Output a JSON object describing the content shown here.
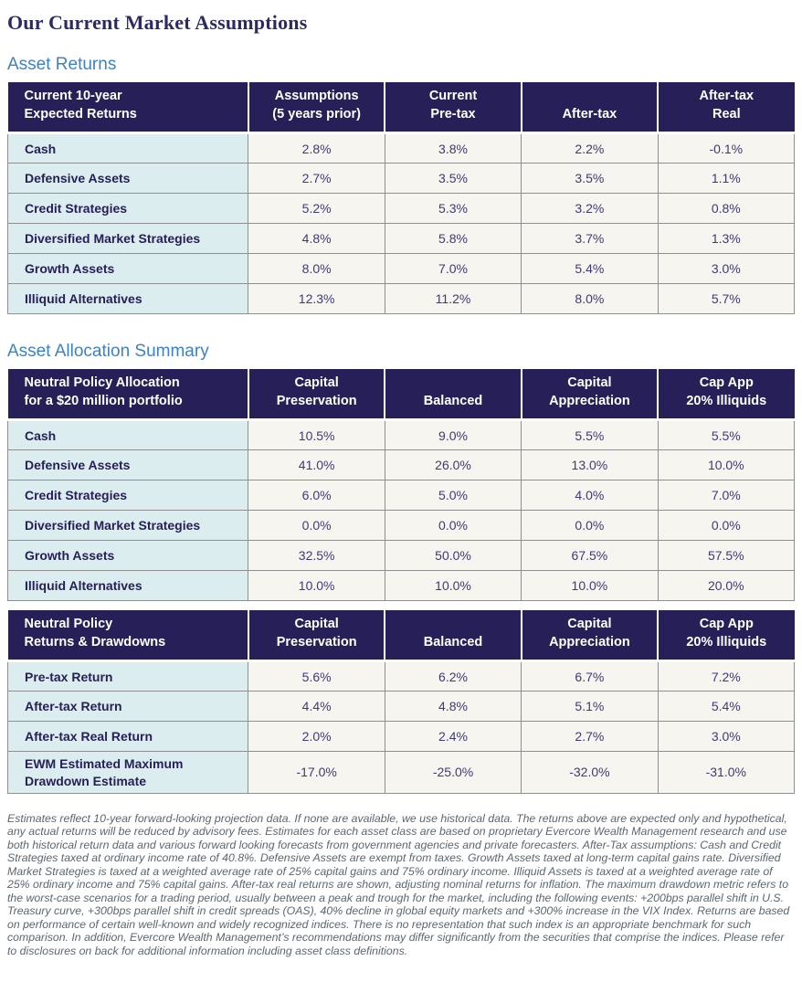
{
  "title": "Our Current Market Assumptions",
  "colors": {
    "header_bg": "#272058",
    "header_text": "#ffffff",
    "label_column_bg": "#dcedef",
    "data_cell_bg": "#f7f5ef",
    "section_heading": "#3d82c4",
    "title_text": "#2d2963",
    "data_text": "#3f3a75",
    "grid_border": "#8f8f8f",
    "footnote_text": "#5b6670"
  },
  "sections": {
    "asset_returns": {
      "heading": "Asset Returns",
      "table": {
        "columns": [
          "Current 10-year\nExpected Returns",
          "Assumptions\n(5 years prior)",
          "Current\nPre-tax",
          "After-tax",
          "After-tax\nReal"
        ],
        "rows": [
          {
            "label": "Cash",
            "values": [
              "2.8%",
              "3.8%",
              "2.2%",
              "-0.1%"
            ]
          },
          {
            "label": "Defensive Assets",
            "values": [
              "2.7%",
              "3.5%",
              "3.5%",
              "1.1%"
            ]
          },
          {
            "label": "Credit Strategies",
            "values": [
              "5.2%",
              "5.3%",
              "3.2%",
              "0.8%"
            ]
          },
          {
            "label": "Diversified Market Strategies",
            "values": [
              "4.8%",
              "5.8%",
              "3.7%",
              "1.3%"
            ]
          },
          {
            "label": "Growth Assets",
            "values": [
              "8.0%",
              "7.0%",
              "5.4%",
              "3.0%"
            ]
          },
          {
            "label": "Illiquid Alternatives",
            "values": [
              "12.3%",
              "11.2%",
              "8.0%",
              "5.7%"
            ]
          }
        ]
      }
    },
    "asset_allocation": {
      "heading": "Asset Allocation Summary",
      "allocation_table": {
        "columns": [
          "Neutral Policy Allocation\nfor a $20 million portfolio",
          "Capital\nPreservation",
          "Balanced",
          "Capital\nAppreciation",
          "Cap App\n20% Illiquids"
        ],
        "rows": [
          {
            "label": "Cash",
            "values": [
              "10.5%",
              "9.0%",
              "5.5%",
              "5.5%"
            ]
          },
          {
            "label": "Defensive Assets",
            "values": [
              "41.0%",
              "26.0%",
              "13.0%",
              "10.0%"
            ]
          },
          {
            "label": "Credit Strategies",
            "values": [
              "6.0%",
              "5.0%",
              "4.0%",
              "7.0%"
            ]
          },
          {
            "label": "Diversified Market Strategies",
            "values": [
              "0.0%",
              "0.0%",
              "0.0%",
              "0.0%"
            ]
          },
          {
            "label": "Growth Assets",
            "values": [
              "32.5%",
              "50.0%",
              "67.5%",
              "57.5%"
            ]
          },
          {
            "label": "Illiquid Alternatives",
            "values": [
              "10.0%",
              "10.0%",
              "10.0%",
              "20.0%"
            ]
          }
        ]
      },
      "returns_table": {
        "columns": [
          "Neutral Policy\nReturns & Drawdowns",
          "Capital\nPreservation",
          "Balanced",
          "Capital\nAppreciation",
          "Cap App\n20% Illiquids"
        ],
        "rows": [
          {
            "label": "Pre-tax Return",
            "values": [
              "5.6%",
              "6.2%",
              "6.7%",
              "7.2%"
            ]
          },
          {
            "label": "After-tax Return",
            "values": [
              "4.4%",
              "4.8%",
              "5.1%",
              "5.4%"
            ]
          },
          {
            "label": "After-tax Real Return",
            "values": [
              "2.0%",
              "2.4%",
              "2.7%",
              "3.0%"
            ]
          },
          {
            "label": "EWM Estimated Maximum\nDrawdown Estimate",
            "values": [
              "-17.0%",
              "-25.0%",
              "-32.0%",
              "-31.0%"
            ]
          }
        ]
      }
    }
  },
  "footnote": "Estimates reflect 10-year forward-looking projection data. If none are available, we use historical data. The returns above are expected only and hypothetical, any actual returns will be reduced by advisory fees. Estimates for each asset class are based on proprietary Evercore Wealth Management research and use both historical return data and various forward looking forecasts from government agencies and private forecasters. After-Tax assumptions: Cash and Credit Strategies taxed at ordinary income rate of 40.8%. Defensive Assets are exempt from taxes. Growth Assets taxed at long-term capital gains rate. Diversified Market Strategies is taxed at a weighted average rate of 25% capital gains and 75% ordinary income. Illiquid Assets is taxed at a weighted average rate of 25% ordinary income and 75% capital gains. After-tax real returns are shown, adjusting nominal returns for inflation. The maximum drawdown metric refers to the worst-case scenarios for a trading period, usually between a peak and trough for the market, including the following events: +200bps parallel shift in U.S. Treasury curve, +300bps parallel shift in credit spreads (OAS), 40% decline in global equity markets and +300% increase in the VIX Index. Returns are based on performance of certain well-known and widely recognized indices. There is no representation that such index is an appropriate benchmark for such comparison. In addition, Evercore Wealth Management’s recommendations may differ significantly from the securities that comprise the indices. Please refer to disclosures on back for additional information including asset class definitions."
}
